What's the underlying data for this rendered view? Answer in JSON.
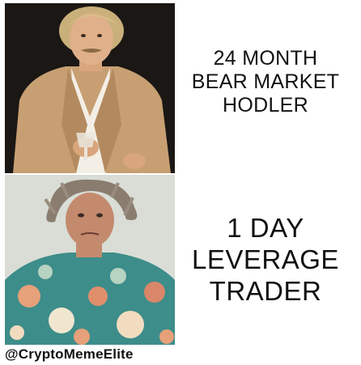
{
  "top_panel": {
    "caption_lines": [
      "24 MONTH",
      "BEAR MARKET",
      "HODLER"
    ]
  },
  "bottom_panel": {
    "caption_lines": [
      "1 DAY",
      "LEVERAGE",
      "TRADER"
    ]
  },
  "watermark": "@CryptoMemeElite",
  "colors": {
    "background": "#ffffff",
    "text": "#111111",
    "top_photo_bg": "#1a1714",
    "bottom_photo_bg": "#d9ddd6"
  }
}
